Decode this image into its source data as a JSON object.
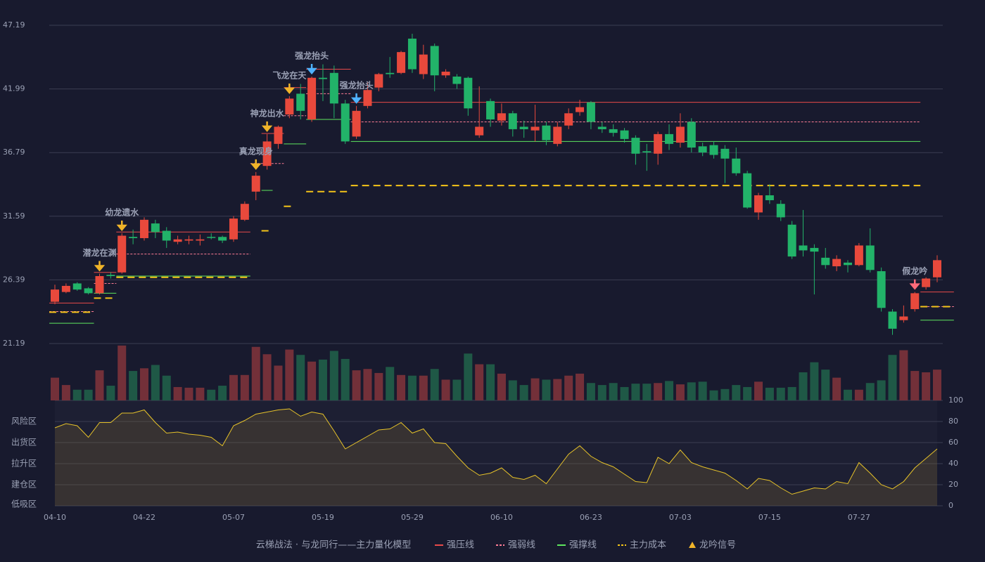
{
  "chart_data": {
    "type": "candlestick",
    "categories": [
      "04-10",
      null,
      null,
      null,
      null,
      null,
      null,
      null,
      "04-22",
      null,
      null,
      null,
      null,
      null,
      null,
      null,
      "05-07",
      null,
      null,
      null,
      null,
      null,
      null,
      null,
      "05-19",
      null,
      null,
      null,
      null,
      null,
      null,
      null,
      "05-29",
      null,
      null,
      null,
      null,
      null,
      null,
      null,
      "06-10",
      null,
      null,
      null,
      null,
      null,
      null,
      null,
      "06-23",
      null,
      null,
      null,
      null,
      null,
      null,
      null,
      "07-03",
      null,
      null,
      null,
      null,
      null,
      null,
      null,
      "07-15",
      null,
      null,
      null,
      null,
      null,
      null,
      null,
      "07-27",
      null,
      null,
      null,
      null,
      null,
      null,
      null
    ],
    "open": [
      24.6,
      25.4,
      26.1,
      25.7,
      25.3,
      26.8,
      27.0,
      29.9,
      29.8,
      31.0,
      30.4,
      29.5,
      29.6,
      29.6,
      29.9,
      29.9,
      29.7,
      31.3,
      33.6,
      35.7,
      37.5,
      39.9,
      41.6,
      39.5,
      42.9,
      43.3,
      40.8,
      38.1,
      40.6,
      42.1,
      43.3,
      43.3,
      46.1,
      43.2,
      45.5,
      43.1,
      43.0,
      42.9,
      38.2,
      41.0,
      39.4,
      40.0,
      38.9,
      38.6,
      39.0,
      37.5,
      39.0,
      40.1,
      40.9,
      38.9,
      38.7,
      38.6,
      38.0,
      36.9,
      36.7,
      38.3,
      37.6,
      39.3,
      37.3,
      37.4,
      37.1,
      36.3,
      35.1,
      31.9,
      33.3,
      32.6,
      30.9,
      29.2,
      29.0,
      28.2,
      27.5,
      27.8,
      27.6,
      29.2,
      27.1,
      23.8,
      23.1,
      24.0,
      25.8,
      26.6
    ],
    "high": [
      26.0,
      26.1,
      26.2,
      25.8,
      26.9,
      27.0,
      30.2,
      30.5,
      31.5,
      31.3,
      30.7,
      30.0,
      30.0,
      30.1,
      30.2,
      30.0,
      31.6,
      32.8,
      35.2,
      38.3,
      39.0,
      41.4,
      42.4,
      43.0,
      44.0,
      43.9,
      41.1,
      40.6,
      42.5,
      43.3,
      44.6,
      45.1,
      46.5,
      45.6,
      45.7,
      43.6,
      43.2,
      43.0,
      42.2,
      41.2,
      40.8,
      40.2,
      39.4,
      40.7,
      39.3,
      39.3,
      40.4,
      41.1,
      41.0,
      39.3,
      39.1,
      38.8,
      38.2,
      37.5,
      38.5,
      39.1,
      40.0,
      39.6,
      37.6,
      37.7,
      37.4,
      37.2,
      35.3,
      33.5,
      34.2,
      32.9,
      31.2,
      32.1,
      29.3,
      29.0,
      28.4,
      28.0,
      29.4,
      30.6,
      27.4,
      24.0,
      24.3,
      25.4,
      26.6,
      28.4
    ],
    "low": [
      24.4,
      25.3,
      25.5,
      25.2,
      25.2,
      26.5,
      26.9,
      29.3,
      29.6,
      29.8,
      29.0,
      29.3,
      29.3,
      29.2,
      29.7,
      29.4,
      29.5,
      31.2,
      32.9,
      35.4,
      37.1,
      39.6,
      39.5,
      39.3,
      41.0,
      39.6,
      37.5,
      37.9,
      40.4,
      41.8,
      42.9,
      43.2,
      43.3,
      42.8,
      41.8,
      42.9,
      42.0,
      39.8,
      38.0,
      38.9,
      39.0,
      38.1,
      38.0,
      37.7,
      37.4,
      37.3,
      38.7,
      39.8,
      38.7,
      38.4,
      38.1,
      37.6,
      35.8,
      35.3,
      35.8,
      37.0,
      37.2,
      36.8,
      36.5,
      36.3,
      34.3,
      34.9,
      32.2,
      31.3,
      32.6,
      31.2,
      28.1,
      28.3,
      25.2,
      27.3,
      27.1,
      27.0,
      27.5,
      27.0,
      23.8,
      21.9,
      22.9,
      23.8,
      25.6,
      26.2
    ],
    "close": [
      25.6,
      25.9,
      25.6,
      25.3,
      26.7,
      26.7,
      30.0,
      29.8,
      31.3,
      30.3,
      29.6,
      29.7,
      29.7,
      29.7,
      29.85,
      29.6,
      31.4,
      32.6,
      34.9,
      37.7,
      38.9,
      41.2,
      40.2,
      42.9,
      42.8,
      40.8,
      37.7,
      40.2,
      41.9,
      43.2,
      43.2,
      45.0,
      43.6,
      44.8,
      43.1,
      43.4,
      42.4,
      40.4,
      38.9,
      39.5,
      40.0,
      38.7,
      38.7,
      38.9,
      37.8,
      38.9,
      40.0,
      40.5,
      39.3,
      38.7,
      38.4,
      37.9,
      36.7,
      36.8,
      38.3,
      37.5,
      38.9,
      37.2,
      36.8,
      36.6,
      36.3,
      35.1,
      32.3,
      33.3,
      32.9,
      31.5,
      28.3,
      28.8,
      28.7,
      27.6,
      28.1,
      27.6,
      29.2,
      27.2,
      24.1,
      22.4,
      23.4,
      25.3,
      26.5,
      28.0
    ],
    "up_color": "#e8493c",
    "down_color": "#22b369",
    "volume_up_color": "#733039",
    "volume_down_color": "#1f5846",
    "ylim": [
      21.19,
      47.19
    ],
    "yticks": [
      47.19,
      41.99,
      36.79,
      31.59,
      26.39,
      21.19
    ],
    "grid": true,
    "volume": [
      34,
      23,
      16,
      16,
      45,
      22,
      82,
      44,
      48,
      53,
      37,
      20,
      19,
      19,
      16,
      22,
      38,
      38,
      80,
      69,
      52,
      76,
      68,
      58,
      61,
      74,
      62,
      45,
      47,
      41,
      50,
      38,
      37,
      37,
      47,
      31,
      31,
      70,
      54,
      54,
      40,
      30,
      23,
      33,
      31,
      32,
      37,
      40,
      26,
      23,
      26,
      20,
      25,
      25,
      26,
      29,
      24,
      27,
      28,
      15,
      17,
      23,
      20,
      28,
      19,
      19,
      20,
      42,
      57,
      46,
      34,
      16,
      16,
      26,
      30,
      68,
      75,
      44,
      42,
      46
    ],
    "volume_ylim": [
      0,
      85
    ],
    "levels": [
      {
        "name": "强压线",
        "color": "#e84a4a",
        "style": "solid",
        "values": [
          24.5,
          24.5,
          24.5,
          24.5,
          27.0,
          27.0,
          30.3,
          30.3,
          30.3,
          30.3,
          30.3,
          30.3,
          30.3,
          30.3,
          30.3,
          30.3,
          30.3,
          30.3,
          null,
          38.35,
          38.35,
          42.1,
          42.1,
          43.6,
          43.6,
          43.6,
          43.6,
          40.9,
          40.9,
          40.9,
          40.9,
          40.9,
          40.9,
          40.9,
          40.9,
          40.9,
          40.9,
          40.9,
          40.9,
          40.9,
          40.9,
          40.9,
          40.9,
          40.9,
          40.9,
          40.9,
          40.9,
          40.9,
          40.9,
          40.9,
          40.9,
          40.9,
          40.9,
          40.9,
          40.9,
          40.9,
          40.9,
          40.9,
          40.9,
          40.9,
          40.9,
          40.9,
          40.9,
          40.9,
          40.9,
          40.9,
          40.9,
          40.9,
          40.9,
          40.9,
          40.9,
          40.9,
          40.9,
          40.9,
          40.9,
          40.9,
          40.9,
          40.9,
          25.4,
          25.4,
          25.4
        ]
      },
      {
        "name": "强弱线",
        "color": "#ff7d96",
        "style": "dashed",
        "values": [
          23.8,
          23.8,
          23.8,
          23.8,
          26.1,
          26.1,
          28.5,
          28.5,
          28.5,
          28.5,
          28.5,
          28.5,
          28.5,
          28.5,
          28.5,
          28.5,
          28.5,
          28.5,
          35.9,
          35.9,
          35.9,
          39.8,
          39.8,
          41.6,
          41.6,
          41.6,
          41.6,
          39.3,
          39.3,
          39.3,
          39.3,
          39.3,
          39.3,
          39.3,
          39.3,
          39.3,
          39.3,
          39.3,
          39.3,
          39.3,
          39.3,
          39.3,
          39.3,
          39.3,
          39.3,
          39.3,
          39.3,
          39.3,
          39.3,
          39.3,
          39.3,
          39.3,
          39.3,
          39.3,
          39.3,
          39.3,
          39.3,
          39.3,
          39.3,
          39.3,
          39.3,
          39.3,
          39.3,
          39.3,
          39.3,
          39.3,
          39.3,
          39.3,
          39.3,
          39.3,
          39.3,
          39.3,
          39.3,
          39.3,
          39.3,
          39.3,
          39.3,
          39.3,
          24.2,
          24.2,
          24.2
        ]
      },
      {
        "name": "强撑线",
        "color": "#5ee65e",
        "style": "solid",
        "values": [
          22.85,
          22.85,
          22.85,
          22.85,
          25.3,
          25.3,
          26.7,
          26.7,
          26.7,
          26.7,
          26.7,
          26.7,
          26.7,
          26.7,
          26.7,
          26.7,
          26.7,
          26.7,
          null,
          33.7,
          null,
          37.5,
          37.5,
          39.5,
          39.5,
          39.5,
          39.5,
          37.7,
          37.7,
          37.7,
          37.7,
          37.7,
          37.7,
          37.7,
          37.7,
          37.7,
          37.7,
          37.7,
          37.7,
          37.7,
          37.7,
          37.7,
          37.7,
          37.7,
          37.7,
          37.7,
          37.7,
          37.7,
          37.7,
          37.7,
          37.7,
          37.7,
          37.7,
          37.7,
          37.7,
          37.7,
          37.7,
          37.7,
          37.7,
          37.7,
          37.7,
          37.7,
          37.7,
          37.7,
          37.7,
          37.7,
          37.7,
          37.7,
          37.7,
          37.7,
          37.7,
          37.7,
          37.7,
          37.7,
          37.7,
          37.7,
          37.7,
          37.7,
          23.1,
          23.1,
          23.1
        ]
      },
      {
        "name": "主力成本",
        "color": "#f5c518",
        "style": "dashed",
        "values": [
          23.75,
          23.75,
          23.75,
          23.75,
          24.9,
          24.9,
          26.6,
          26.6,
          26.6,
          26.6,
          26.6,
          26.6,
          26.6,
          26.6,
          26.6,
          26.6,
          26.6,
          26.6,
          null,
          30.4,
          null,
          32.4,
          null,
          33.6,
          33.6,
          33.6,
          33.6,
          34.1,
          34.1,
          34.1,
          34.1,
          34.1,
          34.1,
          34.1,
          34.1,
          34.1,
          34.1,
          34.1,
          34.1,
          34.1,
          34.1,
          34.1,
          34.1,
          34.1,
          34.1,
          34.1,
          34.1,
          34.1,
          34.1,
          34.1,
          34.1,
          34.1,
          34.1,
          34.1,
          34.1,
          34.1,
          34.1,
          34.1,
          34.1,
          34.1,
          34.1,
          34.1,
          34.1,
          34.1,
          34.1,
          34.1,
          34.1,
          34.1,
          34.1,
          34.1,
          34.1,
          34.1,
          34.1,
          34.1,
          34.1,
          34.1,
          34.1,
          34.1,
          24.2,
          24.2,
          24.2
        ]
      }
    ],
    "signals": [
      null,
      null,
      null,
      null,
      {
        "label": "潜龙在渊",
        "color": "#f0b429"
      },
      null,
      {
        "label": "幼龙遗水",
        "color": "#f0b429"
      },
      null,
      null,
      null,
      null,
      null,
      null,
      null,
      null,
      null,
      null,
      null,
      {
        "label": "真龙现身",
        "color": "#f0b429"
      },
      {
        "label": "神龙出水",
        "color": "#f0b429"
      },
      null,
      {
        "label": "飞龙在天",
        "color": "#f0b429"
      },
      null,
      {
        "label": "强龙抬头",
        "color": "#4fb3ff"
      },
      null,
      null,
      null,
      {
        "label": "强龙抬头",
        "color": "#4fb3ff"
      },
      null,
      null,
      null,
      null,
      null,
      null,
      null,
      null,
      null,
      null,
      null,
      null,
      null,
      null,
      null,
      null,
      null,
      null,
      null,
      null,
      null,
      null,
      null,
      null,
      null,
      null,
      null,
      null,
      null,
      null,
      null,
      null,
      null,
      null,
      null,
      null,
      null,
      null,
      null,
      null,
      null,
      null,
      null,
      null,
      null,
      null,
      null,
      null,
      null,
      {
        "label": "假龙吟",
        "color": "#ff6b7a"
      },
      null,
      null
    ],
    "signal_legend": "龙吟信号",
    "signal_legend_color": "#f0b429",
    "legend_title": "云梯战法 · 与龙同行——主力量化模型",
    "legend_title_color": "#f0c040",
    "osc": [
      74,
      78,
      76,
      65,
      79,
      79,
      88,
      88,
      91,
      79,
      69,
      70,
      68,
      67,
      65,
      57,
      76,
      81,
      87,
      89,
      91,
      92,
      85,
      89,
      87,
      71,
      54,
      60,
      66,
      72,
      73,
      79,
      69,
      73,
      60,
      59,
      47,
      36,
      29,
      31,
      36,
      27,
      25,
      29,
      21,
      35,
      49,
      57,
      47,
      41,
      37,
      30,
      23,
      22,
      46,
      40,
      53,
      41,
      37,
      34,
      31,
      24,
      16,
      26,
      24,
      17,
      11,
      14,
      17,
      16,
      23,
      21,
      41,
      31,
      20,
      16,
      23,
      36,
      45,
      54
    ],
    "osc_color": "#e6c229",
    "osc_ylim": [
      0,
      100
    ],
    "osc_yticks": [
      100,
      80,
      60,
      40,
      20,
      0
    ],
    "osc_tick_colors": [
      "#44dd66",
      "#f0a030",
      "#e040e0",
      "#4a9eff",
      "#ff5a5a",
      "#ff5a5a"
    ],
    "osc_zones": [
      {
        "value": 80,
        "label": "风险区",
        "color": "#f0a030"
      },
      {
        "value": 60,
        "label": "出货区",
        "color": "#e040e0"
      },
      {
        "value": 40,
        "label": "拉升区",
        "color": "#4a9eff"
      },
      {
        "value": 20,
        "label": "建仓区",
        "color": "#ff5a5a"
      },
      {
        "value": 0,
        "label": "低吸区",
        "color": "#ff5a5a"
      }
    ]
  }
}
